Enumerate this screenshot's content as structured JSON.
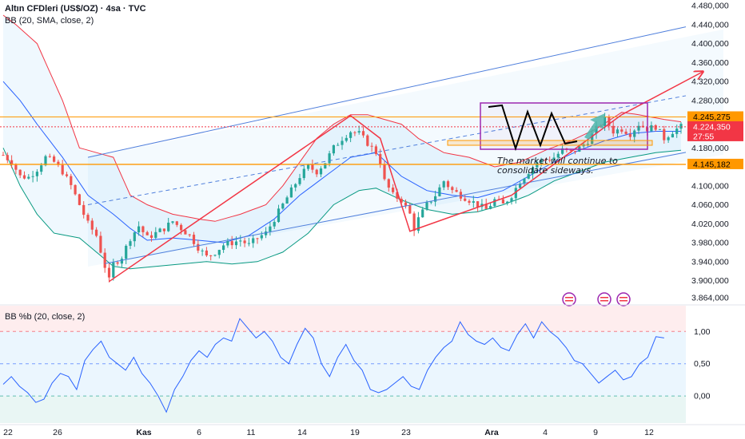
{
  "header": {
    "symbol_line": "Altın CFDleri (US$/OZ) · 4sa · TVC",
    "bb_line": "BB (20, SMA, close, 2)",
    "pctb_line": "BB %b (20, close, 2)"
  },
  "price_tags": [
    {
      "label": "4.245,275",
      "bg": "#ff9800",
      "fg": "#000000"
    },
    {
      "label": "4.224,350",
      "bg": "#f23645",
      "fg": "#ffffff"
    },
    {
      "label": "27:55",
      "bg": "#f23645",
      "fg": "#ffffff"
    },
    {
      "label": "4.145,182",
      "bg": "#ff9800",
      "fg": "#000000"
    }
  ],
  "annotation": [
    "The market will continue to",
    "consolidate sideways."
  ],
  "colors": {
    "up": "#26a69a",
    "down": "#ef5350",
    "bb_basis": "#2962ff",
    "bb_upper": "#f23645",
    "bb_lower": "#089981",
    "pctb_line": "#2962ff",
    "channel": "#4f7fdc",
    "orange": "#ff9800",
    "box": "#9c27b0",
    "arrow_red": "#f23645",
    "arrow_teal": "#4db6ac"
  },
  "icons": [
    "flag-us-icon",
    "flag-us-icon",
    "flag-us-icon"
  ],
  "chart_data": [
    {
      "type": "candlestick",
      "title": "Altın CFDleri (US$/OZ) · 4sa · TVC",
      "indicator": "BB (20, SMA, close, 2)",
      "y_ticks": [
        "4.480,000",
        "4.440,000",
        "4.400,000",
        "4.360,000",
        "4.320,000",
        "4.280,000",
        "4.180,000",
        "4.100,000",
        "4.060,000",
        "4.020,000",
        "3.980,000",
        "3.940,000",
        "3.900,000",
        "3.864,000"
      ],
      "y_tick_values": [
        4480,
        4440,
        4400,
        4360,
        4320,
        4280,
        4180,
        4100,
        4060,
        4020,
        3980,
        3940,
        3900,
        3864
      ],
      "ylim": [
        3852,
        4492
      ],
      "x_ticks": [
        "22",
        "26",
        "Kas",
        "6",
        "11",
        "14",
        "19",
        "23",
        "Ara",
        "4",
        "9",
        "12"
      ],
      "close_path": [
        [
          0,
          4165
        ],
        [
          2,
          4150
        ],
        [
          4,
          4120
        ],
        [
          6,
          4118
        ],
        [
          8,
          4135
        ],
        [
          10,
          4160
        ],
        [
          12,
          4150
        ],
        [
          14,
          4130
        ],
        [
          16,
          4100
        ],
        [
          18,
          4060
        ],
        [
          20,
          4020
        ],
        [
          22,
          3995
        ],
        [
          24,
          3930
        ],
        [
          25,
          3900
        ],
        [
          26,
          3935
        ],
        [
          28,
          3950
        ],
        [
          30,
          3990
        ],
        [
          32,
          4015
        ],
        [
          34,
          3990
        ],
        [
          36,
          4000
        ],
        [
          38,
          4010
        ],
        [
          40,
          4025
        ],
        [
          42,
          4010
        ],
        [
          44,
          3995
        ],
        [
          46,
          3970
        ],
        [
          48,
          3950
        ],
        [
          50,
          3960
        ],
        [
          52,
          3975
        ],
        [
          54,
          3980
        ],
        [
          56,
          3985
        ],
        [
          58,
          3975
        ],
        [
          60,
          3990
        ],
        [
          62,
          4000
        ],
        [
          64,
          4030
        ],
        [
          66,
          4060
        ],
        [
          68,
          4090
        ],
        [
          70,
          4120
        ],
        [
          72,
          4140
        ],
        [
          74,
          4130
        ],
        [
          76,
          4150
        ],
        [
          78,
          4180
        ],
        [
          80,
          4200
        ],
        [
          82,
          4215
        ],
        [
          84,
          4210
        ],
        [
          86,
          4190
        ],
        [
          88,
          4170
        ],
        [
          89,
          4150
        ],
        [
          90,
          4110
        ],
        [
          92,
          4080
        ],
        [
          94,
          4070
        ],
        [
          96,
          4040
        ],
        [
          97,
          4010
        ],
        [
          98,
          4030
        ],
        [
          100,
          4060
        ],
        [
          102,
          4080
        ],
        [
          104,
          4110
        ],
        [
          106,
          4090
        ],
        [
          108,
          4080
        ],
        [
          110,
          4070
        ],
        [
          112,
          4060
        ],
        [
          114,
          4050
        ],
        [
          116,
          4070
        ],
        [
          118,
          4060
        ],
        [
          120,
          4080
        ],
        [
          122,
          4110
        ],
        [
          124,
          4130
        ],
        [
          126,
          4150
        ],
        [
          128,
          4155
        ],
        [
          130,
          4160
        ],
        [
          132,
          4175
        ],
        [
          134,
          4170
        ],
        [
          136,
          4180
        ],
        [
          138,
          4195
        ],
        [
          140,
          4220
        ],
        [
          142,
          4240
        ],
        [
          144,
          4215
        ],
        [
          146,
          4220
        ],
        [
          148,
          4210
        ],
        [
          150,
          4230
        ],
        [
          152,
          4220
        ],
        [
          154,
          4225
        ],
        [
          156,
          4200
        ],
        [
          158,
          4215
        ],
        [
          160,
          4224.35
        ]
      ],
      "bb_upper_path": [
        [
          0,
          4460
        ],
        [
          3,
          4440
        ],
        [
          8,
          4400
        ],
        [
          14,
          4280
        ],
        [
          18,
          4180
        ],
        [
          22,
          4170
        ],
        [
          26,
          4160
        ],
        [
          30,
          4080
        ],
        [
          34,
          4060
        ],
        [
          40,
          4040
        ],
        [
          46,
          4030
        ],
        [
          50,
          4025
        ],
        [
          56,
          4040
        ],
        [
          62,
          4060
        ],
        [
          66,
          4100
        ],
        [
          70,
          4150
        ],
        [
          74,
          4200
        ],
        [
          78,
          4230
        ],
        [
          82,
          4250
        ],
        [
          86,
          4250
        ],
        [
          90,
          4240
        ],
        [
          94,
          4230
        ],
        [
          98,
          4200
        ],
        [
          104,
          4170
        ],
        [
          110,
          4160
        ],
        [
          116,
          4140
        ],
        [
          122,
          4150
        ],
        [
          128,
          4175
        ],
        [
          134,
          4195
        ],
        [
          140,
          4220
        ],
        [
          146,
          4255
        ],
        [
          150,
          4250
        ],
        [
          156,
          4240
        ],
        [
          160,
          4235
        ]
      ],
      "bb_basis_path": [
        [
          0,
          4320
        ],
        [
          4,
          4280
        ],
        [
          8,
          4230
        ],
        [
          14,
          4160
        ],
        [
          20,
          4080
        ],
        [
          26,
          4040
        ],
        [
          30,
          4010
        ],
        [
          34,
          3985
        ],
        [
          40,
          3990
        ],
        [
          46,
          3985
        ],
        [
          52,
          3980
        ],
        [
          58,
          3995
        ],
        [
          64,
          4030
        ],
        [
          70,
          4080
        ],
        [
          76,
          4120
        ],
        [
          82,
          4160
        ],
        [
          88,
          4170
        ],
        [
          94,
          4120
        ],
        [
          100,
          4090
        ],
        [
          106,
          4080
        ],
        [
          112,
          4075
        ],
        [
          118,
          4090
        ],
        [
          124,
          4120
        ],
        [
          130,
          4150
        ],
        [
          136,
          4175
        ],
        [
          142,
          4195
        ],
        [
          148,
          4210
        ],
        [
          154,
          4215
        ],
        [
          160,
          4215
        ]
      ],
      "bb_lower_path": [
        [
          0,
          4180
        ],
        [
          4,
          4100
        ],
        [
          8,
          4040
        ],
        [
          12,
          4000
        ],
        [
          18,
          3990
        ],
        [
          22,
          3960
        ],
        [
          26,
          3930
        ],
        [
          30,
          3925
        ],
        [
          36,
          3930
        ],
        [
          42,
          3935
        ],
        [
          48,
          3940
        ],
        [
          54,
          3935
        ],
        [
          60,
          3940
        ],
        [
          66,
          3960
        ],
        [
          72,
          4000
        ],
        [
          78,
          4060
        ],
        [
          84,
          4090
        ],
        [
          88,
          4095
        ],
        [
          94,
          4070
        ],
        [
          100,
          4050
        ],
        [
          106,
          4040
        ],
        [
          112,
          4045
        ],
        [
          118,
          4060
        ],
        [
          124,
          4080
        ],
        [
          130,
          4110
        ],
        [
          136,
          4130
        ],
        [
          142,
          4150
        ],
        [
          148,
          4160
        ],
        [
          154,
          4170
        ],
        [
          160,
          4175
        ]
      ],
      "levels": [
        4245.275,
        4224.35,
        4145.182
      ],
      "channel_lower": [
        [
          0,
          3898
        ],
        [
          160,
          4150
        ]
      ],
      "channel_upper": [
        [
          20,
          4160
        ],
        [
          170,
          4430
        ]
      ]
    },
    {
      "type": "line",
      "title": "BB %b (20, close, 2)",
      "y_ticks": [
        "1,00",
        "0,50",
        "0,00"
      ],
      "y_tick_values": [
        1.0,
        0.5,
        0.0
      ],
      "ylim": [
        -0.42,
        1.4
      ],
      "values": [
        0.18,
        0.3,
        0.15,
        0.05,
        -0.1,
        -0.05,
        0.2,
        0.35,
        0.3,
        0.1,
        0.55,
        0.72,
        0.85,
        0.6,
        0.5,
        0.4,
        0.6,
        0.35,
        0.2,
        0.0,
        -0.25,
        0.1,
        0.3,
        0.55,
        0.7,
        0.6,
        0.8,
        0.9,
        0.85,
        1.2,
        1.05,
        0.9,
        1.0,
        0.85,
        0.6,
        0.5,
        0.8,
        1.05,
        0.9,
        0.5,
        0.3,
        0.6,
        0.8,
        0.55,
        0.4,
        0.1,
        0.05,
        0.1,
        0.2,
        0.3,
        0.15,
        0.1,
        0.4,
        0.6,
        0.75,
        0.85,
        1.15,
        0.95,
        0.85,
        0.8,
        0.9,
        0.75,
        0.7,
        0.95,
        1.12,
        0.9,
        1.15,
        1.0,
        0.9,
        0.75,
        0.55,
        0.5,
        0.35,
        0.2,
        0.3,
        0.4,
        0.25,
        0.3,
        0.5,
        0.6,
        0.92,
        0.9
      ]
    }
  ]
}
